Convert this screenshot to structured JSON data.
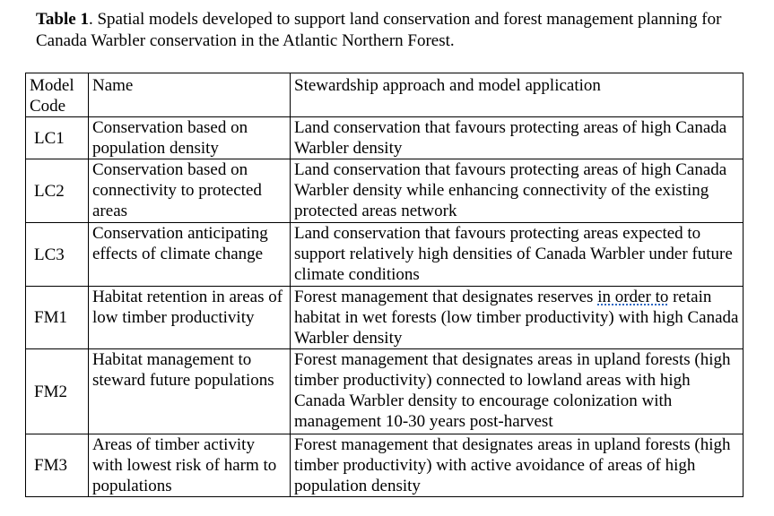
{
  "caption": {
    "label": "Table 1",
    "text": ". Spatial models developed to support land conservation and forest management planning for Canada Warbler conservation in the Atlantic Northern Forest."
  },
  "table": {
    "headers": {
      "code": "Model Code",
      "name": "Name",
      "approach": "Stewardship approach and model application"
    },
    "rows": [
      {
        "code": "LC1",
        "name": "Conservation based on population density",
        "approach": "Land conservation that favours protecting areas of high Canada Warbler density"
      },
      {
        "code": "LC2",
        "name": "Conservation based on connectivity to protected areas",
        "approach": "Land conservation that favours protecting areas of high Canada Warbler density while enhancing connectivity of the existing protected areas network"
      },
      {
        "code": "LC3",
        "name": "Conservation anticipating effects of climate change",
        "approach": "Land conservation that favours protecting areas expected to support relatively high densities of Canada Warbler under future climate conditions"
      },
      {
        "code": "FM1",
        "name": "Habitat retention in areas of low timber productivity",
        "approach_pre": "Forest management that designates reserves ",
        "approach_mark": "in order to",
        "approach_post": " retain habitat in wet forests (low timber productivity) with high Canada Warbler density"
      },
      {
        "code": "FM2",
        "name": "Habitat management to steward future populations",
        "approach": "Forest management that designates areas in upland forests (high timber productivity) connected to lowland areas with high Canada Warbler density to encourage colonization with management 10-30 years post-harvest"
      },
      {
        "code": "FM3",
        "name": "Areas of timber activity with lowest risk of harm to populations",
        "approach": "Forest management that designates areas in upland forests (high timber productivity) with active avoidance of areas of high population density"
      }
    ]
  }
}
